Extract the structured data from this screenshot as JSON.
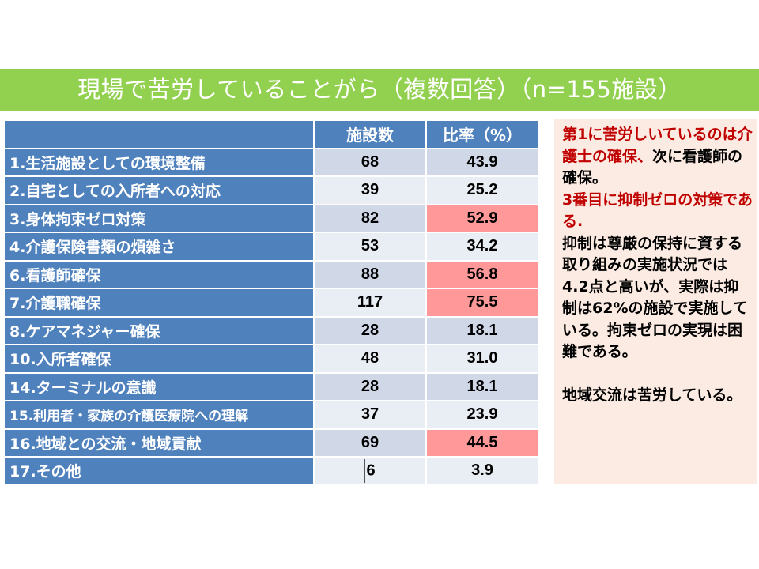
{
  "title": "現場で苦労していることがら（複数回答）（n=155施設）",
  "table": {
    "headers": [
      "",
      "施設数",
      "比率（%）"
    ],
    "rows": [
      {
        "label": "1.生活施設としての環境整備",
        "count": "68",
        "ratio": "43.9",
        "highlight": false
      },
      {
        "label": "2.自宅としての入所者への対応",
        "count": "39",
        "ratio": "25.2",
        "highlight": false
      },
      {
        "label": "3.身体拘束ゼロ対策",
        "count": "82",
        "ratio": "52.9",
        "highlight": true
      },
      {
        "label": "4.介護保険書類の煩雑さ",
        "count": "53",
        "ratio": "34.2",
        "highlight": false
      },
      {
        "label": "6.看護師確保",
        "count": "88",
        "ratio": "56.8",
        "highlight": true
      },
      {
        "label": "7.介護職確保",
        "count": "117",
        "ratio": "75.5",
        "highlight": true
      },
      {
        "label": "8.ケアマネジャー確保",
        "count": "28",
        "ratio": "18.1",
        "highlight": false
      },
      {
        "label": "10.入所者確保",
        "count": "48",
        "ratio": "31.0",
        "highlight": false
      },
      {
        "label": "14.ターミナルの意識",
        "count": "28",
        "ratio": "18.1",
        "highlight": false
      },
      {
        "label": "15.利用者・家族の介護医療院への理解",
        "count": "37",
        "ratio": "23.9",
        "highlight": false
      },
      {
        "label": "16.地域との交流・地域貢献",
        "count": "69",
        "ratio": "44.5",
        "highlight": true
      },
      {
        "label": "17.その他",
        "count": "6",
        "ratio": "3.9",
        "highlight": false
      }
    ]
  },
  "note": {
    "red1": "第1に苦労しいているのは介護士の確保、",
    "black1": "次に看護師の確保。",
    "red2": "3番目に抑制ゼロの対策である.",
    "black2": "抑制は尊厳の保持に資する取り組みの実施状況では4.2点と高いが、実際は抑制は62%の施設で実施している。拘束ゼロの実現は困難である。",
    "black3": "地域交流は苦労している。"
  },
  "colors": {
    "title_bar": "#92d050",
    "header_blue": "#4f81bd",
    "row_light_a": "#d0d8e8",
    "row_light_b": "#e9edf4",
    "highlight": "#ff9999",
    "note_bg": "#fcebe2",
    "note_red": "#c00000"
  }
}
